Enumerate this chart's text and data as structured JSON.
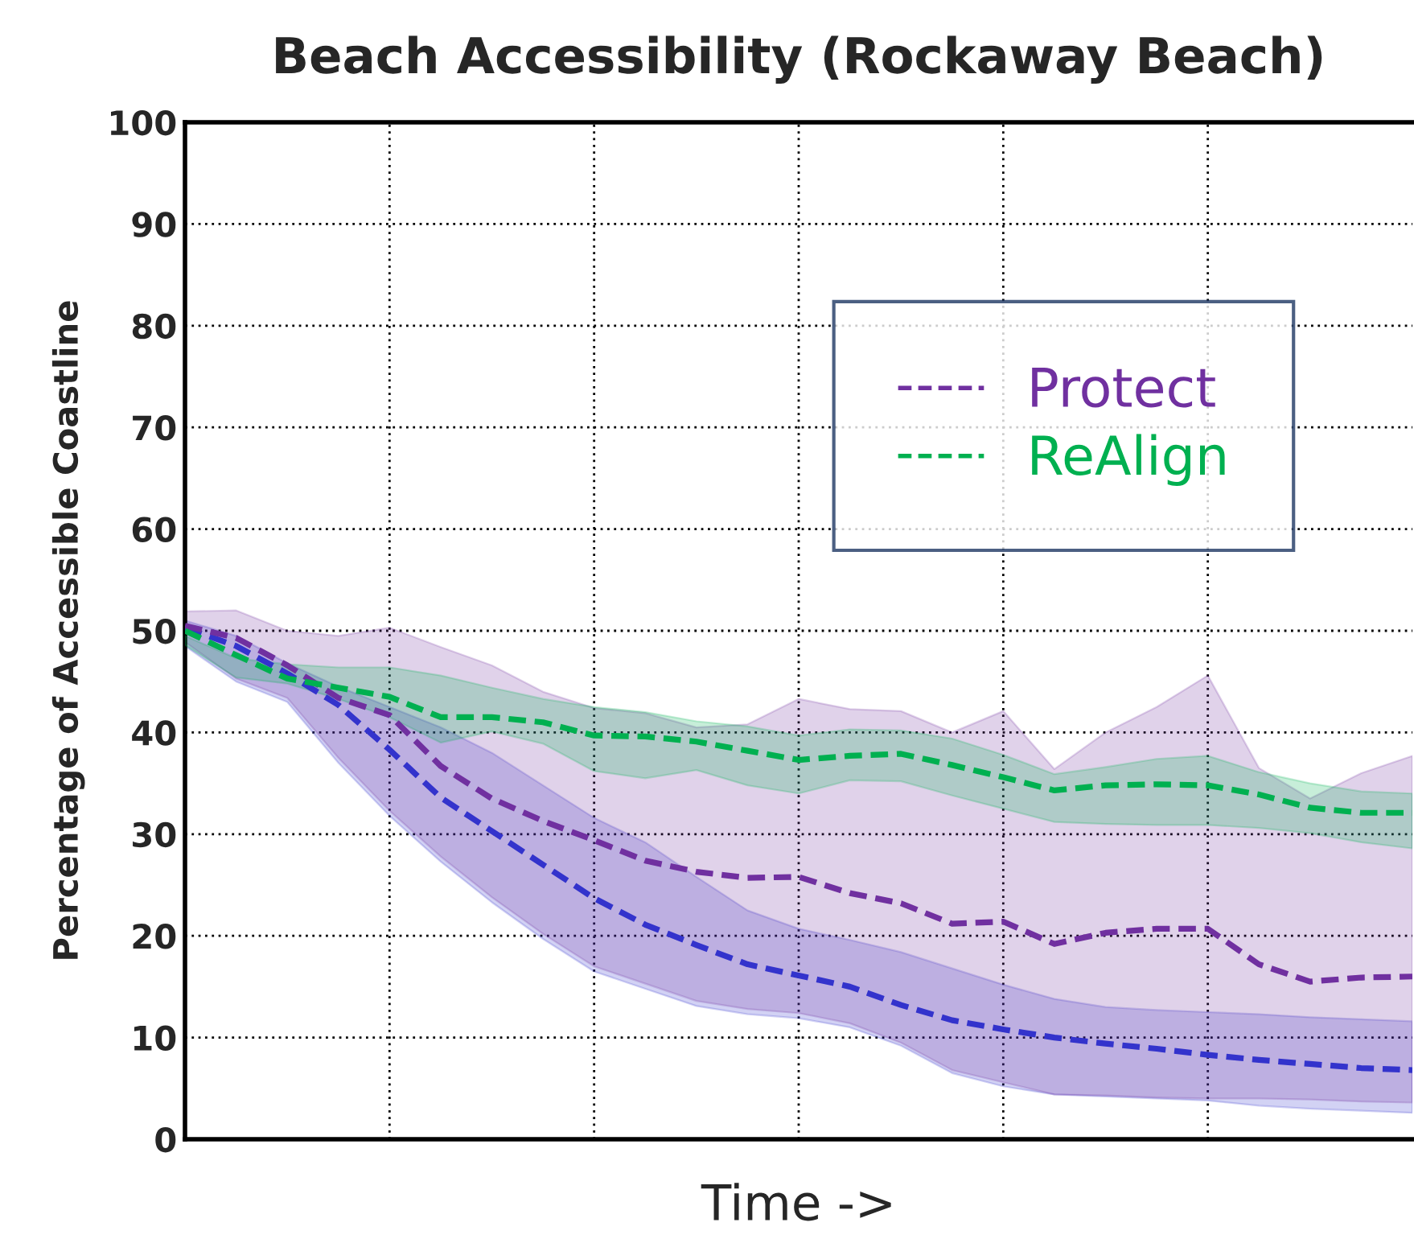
{
  "chart_data": {
    "type": "line",
    "title": "Beach Accessibility (Rockaway Beach)",
    "xlabel": "Time ->",
    "ylabel": "Percentage of Accessible Coastline",
    "categories": [
      null,
      null,
      null,
      null,
      null,
      null,
      null,
      null,
      null,
      null,
      null,
      null,
      null,
      null,
      null,
      null,
      null,
      null,
      null,
      null,
      null,
      null,
      null,
      null,
      null
    ],
    "series": [
      {
        "color": "#3333cc",
        "values": [
          50.3,
          48.5,
          45.8,
          42.7,
          38.3,
          33.6,
          30.3,
          27.0,
          23.7,
          21.1,
          19.1,
          17.2,
          16.1,
          15.0,
          13.2,
          11.7,
          10.8,
          10.0,
          9.4,
          8.9,
          8.3,
          7.8,
          7.4,
          7.0,
          6.8
        ],
        "lower": [
          48.5,
          45,
          43,
          37,
          31.8,
          27.3,
          23.3,
          19.7,
          16.5,
          14.8,
          13.1,
          12.3,
          11.9,
          11.0,
          9.2,
          6.5,
          5.2,
          4.4,
          4.2,
          4.0,
          3.8,
          3.3,
          3.0,
          2.8,
          2.6
        ],
        "upper": [
          51,
          49.5,
          46.8,
          44.5,
          42.5,
          40.5,
          38.0,
          34.8,
          31.6,
          29.2,
          25.8,
          22.5,
          20.7,
          19.6,
          18.4,
          16.8,
          15.2,
          13.8,
          13.0,
          12.7,
          12.5,
          12.3,
          12.0,
          11.8,
          11.6
        ]
      },
      {
        "name": "Protect",
        "color": "#7030a0",
        "values": [
          50.5,
          49.3,
          46.6,
          43.4,
          41.7,
          36.7,
          33.5,
          31.3,
          29.4,
          27.4,
          26.3,
          25.7,
          25.8,
          24.2,
          23.2,
          21.2,
          21.4,
          19.2,
          20.3,
          20.7,
          20.7,
          17.2,
          15.5,
          15.9,
          16.0
        ],
        "lower": [
          48.9,
          45.3,
          43.4,
          37.5,
          32.3,
          27.8,
          23.8,
          20.2,
          17.0,
          15.3,
          13.6,
          12.8,
          12.4,
          11.4,
          9.5,
          6.8,
          5.6,
          4.4,
          4.3,
          4.1,
          4.0,
          4.0,
          3.9,
          3.7,
          3.6
        ],
        "upper": [
          51.9,
          52,
          50.0,
          49.5,
          50.3,
          48.4,
          46.6,
          44.0,
          42.4,
          41.9,
          40.5,
          40.8,
          43.3,
          42.3,
          42.1,
          40.0,
          42.1,
          36.4,
          40.0,
          42.5,
          45.6,
          36.5,
          33.5,
          36.0,
          37.7
        ]
      },
      {
        "name": "ReAlign",
        "color": "#00b050",
        "values": [
          50.0,
          47.6,
          45.3,
          44.4,
          43.5,
          41.5,
          41.5,
          41.0,
          39.7,
          39.6,
          39.1,
          38.2,
          37.3,
          37.7,
          37.9,
          36.8,
          35.6,
          34.3,
          34.8,
          34.9,
          34.8,
          33.9,
          32.6,
          32.1,
          32.1
        ],
        "lower": [
          48.6,
          45.4,
          44.8,
          43.3,
          41.5,
          39.0,
          40.1,
          38.9,
          36.2,
          35.5,
          36.3,
          34.8,
          34.0,
          35.3,
          35.2,
          33.8,
          32.5,
          31.2,
          31.0,
          30.9,
          30.9,
          30.6,
          30.1,
          29.2,
          28.6
        ],
        "upper": [
          49.5,
          47.3,
          46.7,
          46.4,
          46.4,
          45.6,
          44.4,
          43.3,
          42.5,
          42.0,
          41.1,
          40.6,
          39.7,
          40.3,
          40.2,
          39.4,
          37.8,
          35.9,
          36.6,
          37.4,
          37.7,
          36.1,
          35.0,
          34.2,
          34.0
        ]
      }
    ],
    "ylim": [
      0,
      100
    ],
    "yticks": [
      0,
      10,
      20,
      30,
      40,
      50,
      60,
      70,
      80,
      90,
      100
    ],
    "grid": true,
    "legend": "top right",
    "line_style": "dashed",
    "marker": "none"
  }
}
